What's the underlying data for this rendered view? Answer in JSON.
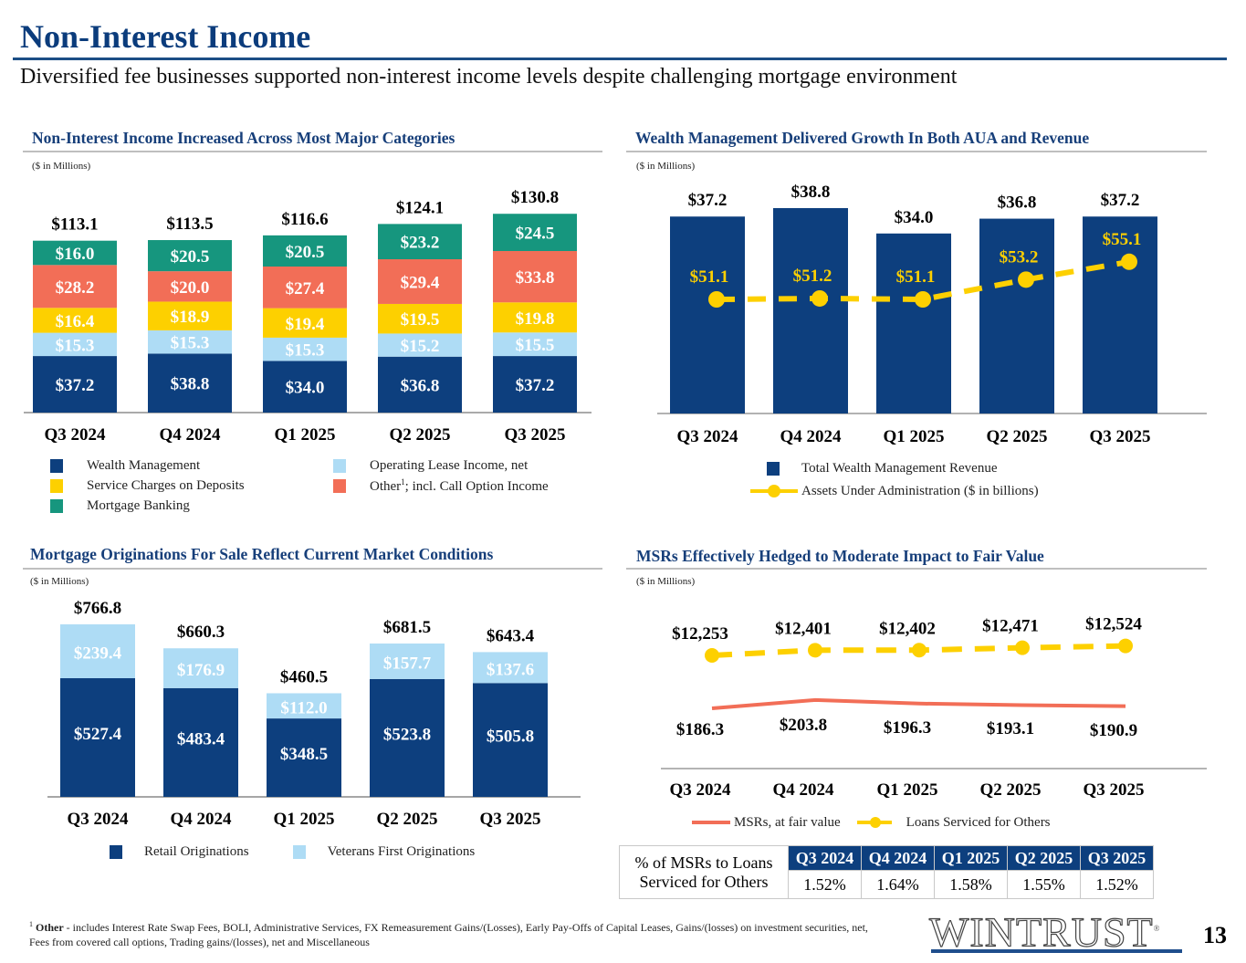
{
  "header": {
    "title": "Non-Interest Income",
    "subtitle": "Diversified fee businesses supported non-interest income levels despite challenging mortgage environment"
  },
  "colors": {
    "navy": "#0d3f7e",
    "light_blue": "#aedcf5",
    "yellow": "#fdd000",
    "coral": "#f26e57",
    "teal": "#16967e",
    "title_blue": "#173f7a"
  },
  "chart_data": [
    {
      "id": "non_interest_income",
      "type": "bar",
      "stacked": true,
      "title": "Non-Interest Income Increased Across Most Major Categories",
      "units": "($ in Millions)",
      "categories": [
        "Q3 2024",
        "Q4 2024",
        "Q1 2025",
        "Q2 2025",
        "Q3 2025"
      ],
      "series": [
        {
          "name": "Wealth Management",
          "color": "#0d3f7e",
          "label_color": "#ffffff",
          "values": [
            37.2,
            38.8,
            34.0,
            36.8,
            37.2
          ],
          "labels": [
            "$37.2",
            "$38.8",
            "$34.0",
            "$36.8",
            "$37.2"
          ]
        },
        {
          "name": "Operating Lease Income, net",
          "color": "#aedcf5",
          "label_color": "#ffffff",
          "values": [
            15.3,
            15.3,
            15.3,
            15.2,
            15.5
          ],
          "labels": [
            "$15.3",
            "$15.3",
            "$15.3",
            "$15.2",
            "$15.5"
          ]
        },
        {
          "name": "Service Charges on Deposits",
          "color": "#fdd000",
          "label_color": "#ffffff",
          "values": [
            16.4,
            18.9,
            19.4,
            19.5,
            19.8
          ],
          "labels": [
            "$16.4",
            "$18.9",
            "$19.4",
            "$19.5",
            "$19.8"
          ]
        },
        {
          "name": "Other¹; incl. Call Option Income",
          "color": "#f26e57",
          "label_color": "#ffffff",
          "values": [
            28.2,
            20.0,
            27.4,
            29.4,
            33.8
          ],
          "labels": [
            "$28.2",
            "$20.0",
            "$27.4",
            "$29.4",
            "$33.8"
          ]
        },
        {
          "name": "Mortgage Banking",
          "color": "#16967e",
          "label_color": "#ffffff",
          "values": [
            16.0,
            20.5,
            20.5,
            23.2,
            24.5
          ],
          "labels": [
            "$16.0",
            "$20.5",
            "$20.5",
            "$23.2",
            "$24.5"
          ]
        }
      ],
      "totals": [
        "$113.1",
        "$113.5",
        "$116.6",
        "$124.1",
        "$130.8"
      ],
      "total_values": [
        113.1,
        113.5,
        116.6,
        124.1,
        130.8
      ],
      "legend": {
        "left": [
          {
            "label": "Wealth Management",
            "color": "#0d3f7e"
          },
          {
            "label": "Service Charges on Deposits",
            "color": "#fdd000"
          },
          {
            "label": "Mortgage Banking",
            "color": "#16967e"
          }
        ],
        "right": [
          {
            "label": "Operating Lease Income, net",
            "color": "#aedcf5"
          },
          {
            "label": "Other",
            "sup": "1",
            "suffix": "; incl. Call Option Income",
            "color": "#f26e57"
          }
        ]
      },
      "ylim": [
        0,
        135
      ],
      "grid": false,
      "legend_position": "bottom"
    },
    {
      "id": "wealth_management",
      "type": "bar",
      "title": "Wealth Management Delivered Growth In Both AUA and Revenue",
      "units": "($ in Millions)",
      "categories": [
        "Q3 2024",
        "Q4 2024",
        "Q1 2025",
        "Q2 2025",
        "Q3 2025"
      ],
      "series": [
        {
          "name": "Total Wealth Management Revenue",
          "type": "bar",
          "color": "#0d3f7e",
          "values": [
            37.2,
            38.8,
            34.0,
            36.8,
            37.2
          ],
          "labels": [
            "$37.2",
            "$38.8",
            "$34.0",
            "$36.8",
            "$37.2"
          ]
        },
        {
          "name": "Assets Under Administration ($ in billions)",
          "type": "line",
          "style": "dashed",
          "color": "#fdd000",
          "values": [
            51.1,
            51.2,
            51.1,
            53.2,
            55.1
          ],
          "labels": [
            "$51.1",
            "$51.2",
            "$51.1",
            "$53.2",
            "$55.1"
          ]
        }
      ],
      "ylim_bars": [
        0,
        40
      ],
      "ylim_line": [
        44,
        60
      ],
      "grid": false,
      "legend_position": "bottom"
    },
    {
      "id": "mortgage_originations",
      "type": "bar",
      "stacked": true,
      "title": "Mortgage Originations For Sale Reflect Current Market Conditions",
      "units": "($ in Millions)",
      "categories": [
        "Q3 2024",
        "Q4 2024",
        "Q1 2025",
        "Q2 2025",
        "Q3 2025"
      ],
      "series": [
        {
          "name": "Retail Originations",
          "color": "#0d3f7e",
          "values": [
            527.4,
            483.4,
            348.5,
            523.8,
            505.8
          ],
          "labels": [
            "$527.4",
            "$483.4",
            "$348.5",
            "$523.8",
            "$505.8"
          ]
        },
        {
          "name": "Veterans First Originations",
          "color": "#aedcf5",
          "values": [
            239.4,
            176.9,
            112.0,
            157.7,
            137.6
          ],
          "labels": [
            "$239.4",
            "$176.9",
            "$112.0",
            "$157.7",
            "$137.6"
          ]
        }
      ],
      "totals": [
        "$766.8",
        "$660.3",
        "$460.5",
        "$681.5",
        "$643.4"
      ],
      "total_values": [
        766.8,
        660.3,
        460.5,
        681.5,
        643.4
      ],
      "ylim": [
        0,
        800
      ],
      "grid": false,
      "legend_position": "bottom"
    },
    {
      "id": "msrs",
      "type": "line",
      "title": "MSRs Effectively Hedged to Moderate Impact to Fair Value",
      "units": "($ in Millions)",
      "categories": [
        "Q3 2024",
        "Q4 2024",
        "Q1 2025",
        "Q2 2025",
        "Q3 2025"
      ],
      "series": [
        {
          "name": "MSRs, at fair value",
          "style": "solid",
          "color": "#f26e57",
          "values": [
            186.3,
            203.8,
            196.3,
            193.1,
            190.9
          ],
          "labels": [
            "$186.3",
            "$203.8",
            "$196.3",
            "$193.1",
            "$190.9"
          ]
        },
        {
          "name": "Loans Serviced for Others",
          "style": "dashed",
          "color": "#fdd000",
          "values": [
            12253,
            12401,
            12402,
            12471,
            12524
          ],
          "labels": [
            "$12,253",
            "$12,401",
            "$12,402",
            "$12,471",
            "$12,524"
          ]
        }
      ],
      "grid": false,
      "legend_position": "bottom"
    }
  ],
  "msr_table": {
    "row_label_line1": "% of MSRs to Loans",
    "row_label_line2": "Serviced for Others",
    "headers": [
      "Q3 2024",
      "Q4 2024",
      "Q1 2025",
      "Q2 2025",
      "Q3 2025"
    ],
    "values": [
      "1.52%",
      "1.64%",
      "1.58%",
      "1.55%",
      "1.52%"
    ]
  },
  "footnote": {
    "marker": "1",
    "bold": "Other",
    "text": " - includes Interest Rate Swap Fees, BOLI, Administrative Services, FX Remeasurement Gains/(Losses), Early Pay-Offs of Capital Leases, Gains/(losses) on investment securities, net, Fees from covered call options, Trading gains/(losses), net and Miscellaneous"
  },
  "footer": {
    "logo": "WINTRUST",
    "logo_mark": "®",
    "page_number": "13"
  }
}
